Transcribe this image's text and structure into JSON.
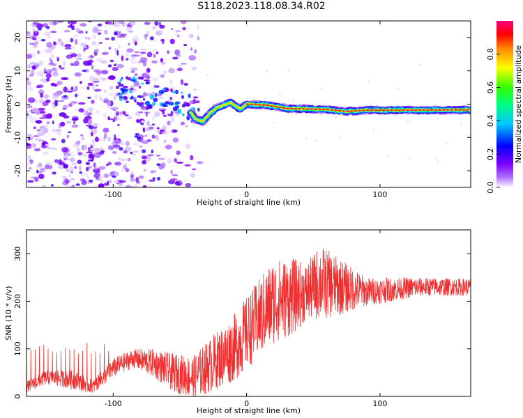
{
  "title": "S118.2023.118.08.34.R02",
  "chart_data": [
    {
      "type": "heatmap",
      "xlabel": "Height of straight line (km)",
      "ylabel": "Frequency (Hz)",
      "xlim": [
        -165,
        168
      ],
      "ylim": [
        -25,
        25
      ],
      "xticks": [
        -100,
        0,
        100
      ],
      "yticks": [
        -20,
        -10,
        0,
        10,
        20
      ],
      "colorbar": {
        "label": "Normalized spectral amplitude",
        "range": [
          0.0,
          1.0
        ],
        "ticks": [
          "0.0",
          "0.2",
          "0.4",
          "0.6",
          "0.8"
        ],
        "colors": [
          "#ffffff",
          "#7f00ff",
          "#0000ff",
          "#00ffff",
          "#00ff00",
          "#ffff00",
          "#ff0000",
          "#ff007f"
        ]
      },
      "signal_track": [
        {
          "x": -42,
          "y": -2.5
        },
        {
          "x": -38,
          "y": -4.5
        },
        {
          "x": -33,
          "y": -5.2
        },
        {
          "x": -28,
          "y": -3.0
        },
        {
          "x": -22,
          "y": -1.0
        },
        {
          "x": -12,
          "y": 0.5
        },
        {
          "x": -5,
          "y": -1.5
        },
        {
          "x": 0,
          "y": 0.0
        },
        {
          "x": 15,
          "y": -0.3
        },
        {
          "x": 30,
          "y": -1.3
        },
        {
          "x": 60,
          "y": -1.6
        },
        {
          "x": 75,
          "y": -2.2
        },
        {
          "x": 90,
          "y": -1.8
        },
        {
          "x": 120,
          "y": -1.8
        },
        {
          "x": 168,
          "y": -1.7
        }
      ]
    },
    {
      "type": "line",
      "xlabel": "Height of straight line (km)",
      "ylabel": "SNR (10 * v/v)",
      "xlim": [
        -165,
        168
      ],
      "ylim": [
        0,
        350
      ],
      "xticks": [
        -100,
        0,
        100
      ],
      "yticks": [
        0,
        100,
        200,
        300
      ],
      "color": "#f03030",
      "envelope": [
        {
          "x": -165,
          "mean": 20,
          "spread": 12
        },
        {
          "x": -150,
          "mean": 40,
          "spread": 15
        },
        {
          "x": -130,
          "mean": 35,
          "spread": 20
        },
        {
          "x": -115,
          "mean": 20,
          "spread": 15
        },
        {
          "x": -100,
          "mean": 60,
          "spread": 20
        },
        {
          "x": -85,
          "mean": 80,
          "spread": 20
        },
        {
          "x": -70,
          "mean": 70,
          "spread": 30
        },
        {
          "x": -55,
          "mean": 50,
          "spread": 40
        },
        {
          "x": -40,
          "mean": 40,
          "spread": 45
        },
        {
          "x": -25,
          "mean": 70,
          "spread": 60
        },
        {
          "x": -10,
          "mean": 100,
          "spread": 70
        },
        {
          "x": 5,
          "mean": 150,
          "spread": 80
        },
        {
          "x": 20,
          "mean": 200,
          "spread": 90
        },
        {
          "x": 35,
          "mean": 210,
          "spread": 80
        },
        {
          "x": 45,
          "mean": 220,
          "spread": 60
        },
        {
          "x": 55,
          "mean": 240,
          "spread": 80
        },
        {
          "x": 70,
          "mean": 230,
          "spread": 60
        },
        {
          "x": 90,
          "mean": 220,
          "spread": 30
        },
        {
          "x": 110,
          "mean": 225,
          "spread": 25
        },
        {
          "x": 130,
          "mean": 230,
          "spread": 20
        },
        {
          "x": 168,
          "mean": 230,
          "spread": 18
        }
      ]
    }
  ]
}
